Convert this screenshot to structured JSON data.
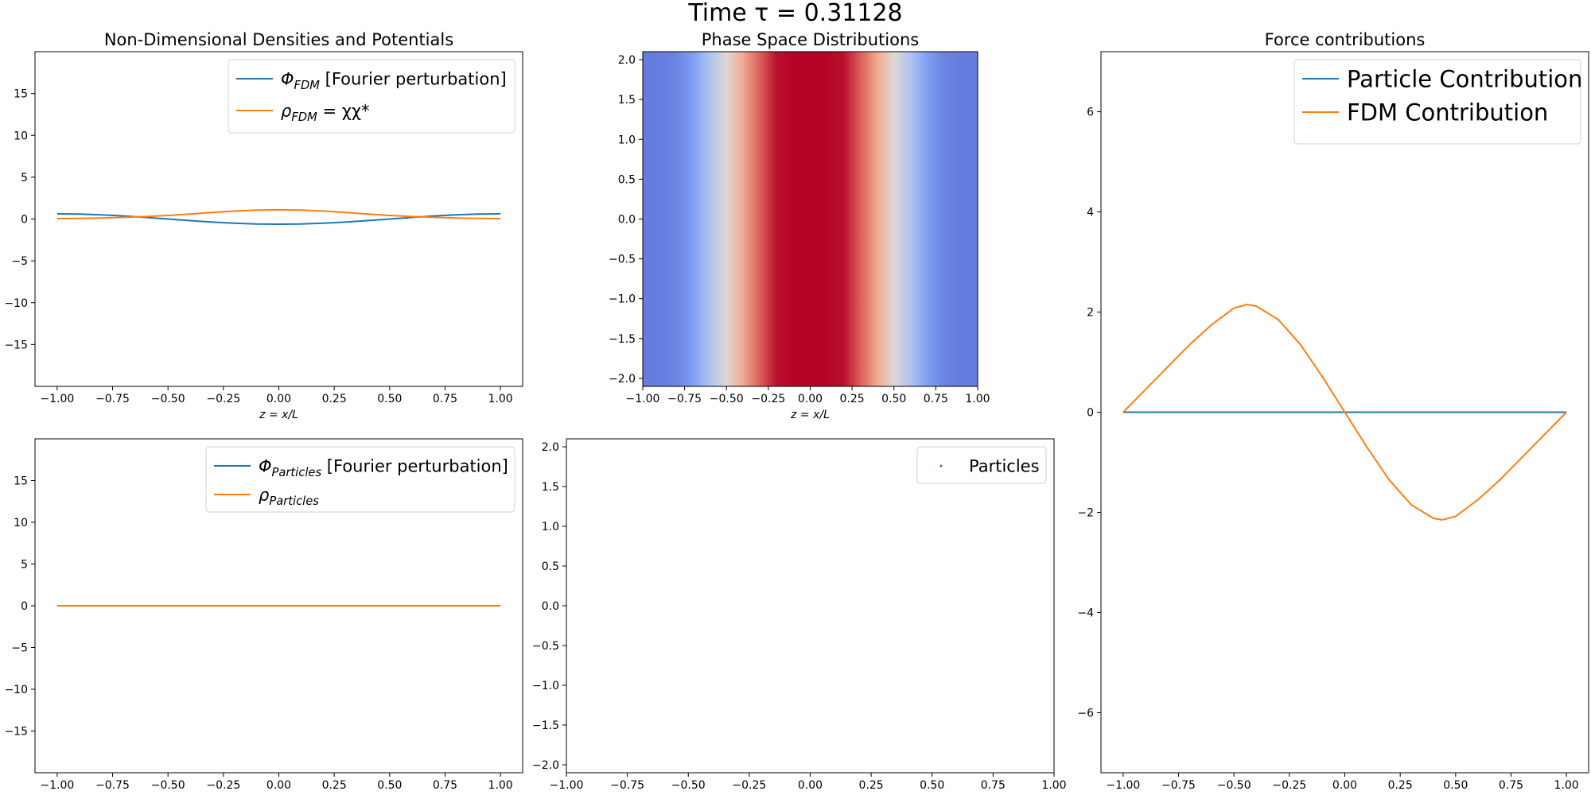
{
  "figure": {
    "suptitle": "Time τ = 0.31128"
  },
  "colors": {
    "blue": "#1f77b4",
    "orange": "#ff7f0e",
    "heatmap_colormap": "coolwarm"
  },
  "chart_data": [
    {
      "id": "fdm_densities",
      "type": "line",
      "title": "Non-Dimensional Densities and Potentials",
      "xlabel": "z = x/L",
      "ylabel": "",
      "xlim": [
        -1.1,
        1.1
      ],
      "ylim": [
        -20,
        20
      ],
      "xticks": [
        -1.0,
        -0.75,
        -0.5,
        -0.25,
        0.0,
        0.25,
        0.5,
        0.75,
        1.0
      ],
      "xtick_labels": [
        "−1.00",
        "−0.75",
        "−0.50",
        "−0.25",
        "0.00",
        "0.25",
        "0.50",
        "0.75",
        "1.00"
      ],
      "yticks": [
        -15,
        -10,
        -5,
        0,
        5,
        10,
        15
      ],
      "ytick_labels": [
        "−15",
        "−10",
        "−5",
        "0",
        "5",
        "10",
        "15"
      ],
      "legend_position": "top-right",
      "series": [
        {
          "name": "Φ_FDM [Fourier perturbation]",
          "legend_main": "Φ",
          "legend_sub": "FDM",
          "legend_rest": " [Fourier perturbation]",
          "color": "#1f77b4",
          "x": [
            -1.0,
            -0.9,
            -0.8,
            -0.7,
            -0.6,
            -0.5,
            -0.4,
            -0.3,
            -0.2,
            -0.1,
            0.0,
            0.1,
            0.2,
            0.3,
            0.4,
            0.5,
            0.6,
            0.7,
            0.8,
            0.9,
            1.0
          ],
          "y": [
            0.62,
            0.59,
            0.5,
            0.37,
            0.19,
            0.0,
            -0.19,
            -0.37,
            -0.5,
            -0.59,
            -0.62,
            -0.59,
            -0.5,
            -0.37,
            -0.19,
            0.0,
            0.19,
            0.37,
            0.5,
            0.59,
            0.62
          ]
        },
        {
          "name": "ρ_FDM = χχ*",
          "legend_main": "ρ",
          "legend_sub": "FDM",
          "legend_rest": " = χχ*",
          "color": "#ff7f0e",
          "x": [
            -1.0,
            -0.9,
            -0.8,
            -0.7,
            -0.6,
            -0.5,
            -0.4,
            -0.3,
            -0.2,
            -0.1,
            0.0,
            0.1,
            0.2,
            0.3,
            0.4,
            0.5,
            0.6,
            0.7,
            0.8,
            0.9,
            1.0
          ],
          "y": [
            0.05,
            0.07,
            0.12,
            0.2,
            0.3,
            0.43,
            0.6,
            0.78,
            0.95,
            1.07,
            1.1,
            1.07,
            0.95,
            0.78,
            0.6,
            0.43,
            0.3,
            0.2,
            0.12,
            0.07,
            0.05
          ]
        }
      ]
    },
    {
      "id": "phase_space_fdm",
      "type": "heatmap",
      "title": "Phase Space Distributions",
      "xlabel": "z = x/L",
      "ylabel": "",
      "xlim": [
        -1.0,
        1.0
      ],
      "ylim": [
        -2.1,
        2.1
      ],
      "xticks": [
        -1.0,
        -0.75,
        -0.5,
        -0.25,
        0.0,
        0.25,
        0.5,
        0.75,
        1.0
      ],
      "xtick_labels": [
        "−1.00",
        "−0.75",
        "−0.50",
        "−0.25",
        "0.00",
        "0.25",
        "0.50",
        "0.75",
        "1.00"
      ],
      "yticks": [
        -2.0,
        -1.5,
        -1.0,
        -0.5,
        0.0,
        0.5,
        1.0,
        1.5,
        2.0
      ],
      "ytick_labels": [
        "−2.0",
        "−1.5",
        "−1.0",
        "−0.5",
        "0.0",
        "0.5",
        "1.0",
        "1.5",
        "2.0"
      ],
      "profile_note_values": {
        "z": [
          -1.0,
          -0.9,
          -0.8,
          -0.7,
          -0.6,
          -0.5,
          -0.4,
          -0.3,
          -0.2,
          -0.1,
          0.0,
          0.1,
          0.2,
          0.3,
          0.4,
          0.5,
          0.6,
          0.7,
          0.8,
          0.9,
          1.0
        ],
        "intensity": [
          0.12,
          0.12,
          0.14,
          0.2,
          0.35,
          0.52,
          0.7,
          0.85,
          0.98,
          1.0,
          1.0,
          1.0,
          0.98,
          0.85,
          0.7,
          0.52,
          0.35,
          0.2,
          0.14,
          0.12,
          0.12
        ]
      }
    },
    {
      "id": "force_contributions",
      "type": "line",
      "title": "Force contributions",
      "xlabel": "",
      "ylabel": "",
      "xlim": [
        -1.1,
        1.1
      ],
      "ylim": [
        -7.2,
        7.2
      ],
      "xticks": [
        -1.0,
        -0.75,
        -0.5,
        -0.25,
        0.0,
        0.25,
        0.5,
        0.75,
        1.0
      ],
      "xtick_labels": [
        "−1.00",
        "−0.75",
        "−0.50",
        "−0.25",
        "0.00",
        "0.25",
        "0.50",
        "0.75",
        "1.00"
      ],
      "yticks": [
        -6,
        -4,
        -2,
        0,
        2,
        4,
        6
      ],
      "ytick_labels": [
        "−6",
        "−4",
        "−2",
        "0",
        "2",
        "4",
        "6"
      ],
      "legend_position": "top-right",
      "series": [
        {
          "name": "Particle Contribution",
          "color": "#1f77b4",
          "x": [
            -1.0,
            1.0
          ],
          "y": [
            0.0,
            0.0
          ]
        },
        {
          "name": "FDM Contribution",
          "color": "#ff7f0e",
          "x": [
            -1.0,
            -0.9,
            -0.8,
            -0.7,
            -0.6,
            -0.5,
            -0.44,
            -0.4,
            -0.3,
            -0.2,
            -0.1,
            0.0,
            0.1,
            0.2,
            0.3,
            0.4,
            0.44,
            0.5,
            0.6,
            0.7,
            0.8,
            0.9,
            1.0
          ],
          "y": [
            0.0,
            0.45,
            0.9,
            1.35,
            1.75,
            2.08,
            2.15,
            2.12,
            1.85,
            1.35,
            0.7,
            0.0,
            -0.7,
            -1.35,
            -1.85,
            -2.12,
            -2.15,
            -2.08,
            -1.75,
            -1.35,
            -0.9,
            -0.45,
            0.0
          ]
        }
      ]
    },
    {
      "id": "particle_densities",
      "type": "line",
      "title": "",
      "xlabel": "",
      "ylabel": "",
      "xlim": [
        -1.1,
        1.1
      ],
      "ylim": [
        -20,
        20
      ],
      "xticks": [
        -1.0,
        -0.75,
        -0.5,
        -0.25,
        0.0,
        0.25,
        0.5,
        0.75,
        1.0
      ],
      "xtick_labels": [
        "−1.00",
        "−0.75",
        "−0.50",
        "−0.25",
        "0.00",
        "0.25",
        "0.50",
        "0.75",
        "1.00"
      ],
      "yticks": [
        -15,
        -10,
        -5,
        0,
        5,
        10,
        15
      ],
      "ytick_labels": [
        "−15",
        "−10",
        "−5",
        "0",
        "5",
        "10",
        "15"
      ],
      "legend_position": "top-right",
      "series": [
        {
          "name": "Φ_Particles [Fourier perturbation]",
          "legend_main": "Φ",
          "legend_sub": "Particles",
          "legend_rest": " [Fourier perturbation]",
          "color": "#1f77b4",
          "x": [
            -1.0,
            1.0
          ],
          "y": [
            0.0,
            0.0
          ]
        },
        {
          "name": "ρ_Particles",
          "legend_main": "ρ",
          "legend_sub": "Particles",
          "legend_rest": "",
          "color": "#ff7f0e",
          "x": [
            -1.0,
            1.0
          ],
          "y": [
            0.0,
            0.0
          ]
        }
      ]
    },
    {
      "id": "phase_space_particles",
      "type": "scatter",
      "title": "",
      "xlabel": "",
      "ylabel": "",
      "xlim": [
        -1.0,
        1.0
      ],
      "ylim": [
        -2.1,
        2.1
      ],
      "xticks": [
        -1.0,
        -0.75,
        -0.5,
        -0.25,
        0.0,
        0.25,
        0.5,
        0.75,
        1.0
      ],
      "xtick_labels": [
        "−1.00",
        "−0.75",
        "−0.50",
        "−0.25",
        "0.00",
        "0.25",
        "0.50",
        "0.75",
        "1.00"
      ],
      "yticks": [
        -2.0,
        -1.5,
        -1.0,
        -0.5,
        0.0,
        0.5,
        1.0,
        1.5,
        2.0
      ],
      "ytick_labels": [
        "−2.0",
        "−1.5",
        "−1.0",
        "−0.5",
        "0.0",
        "0.5",
        "1.0",
        "1.5",
        "2.0"
      ],
      "legend_position": "top-right",
      "series": [
        {
          "name": "Particles",
          "color": "#1f77b4",
          "x": [],
          "y": []
        }
      ]
    }
  ]
}
